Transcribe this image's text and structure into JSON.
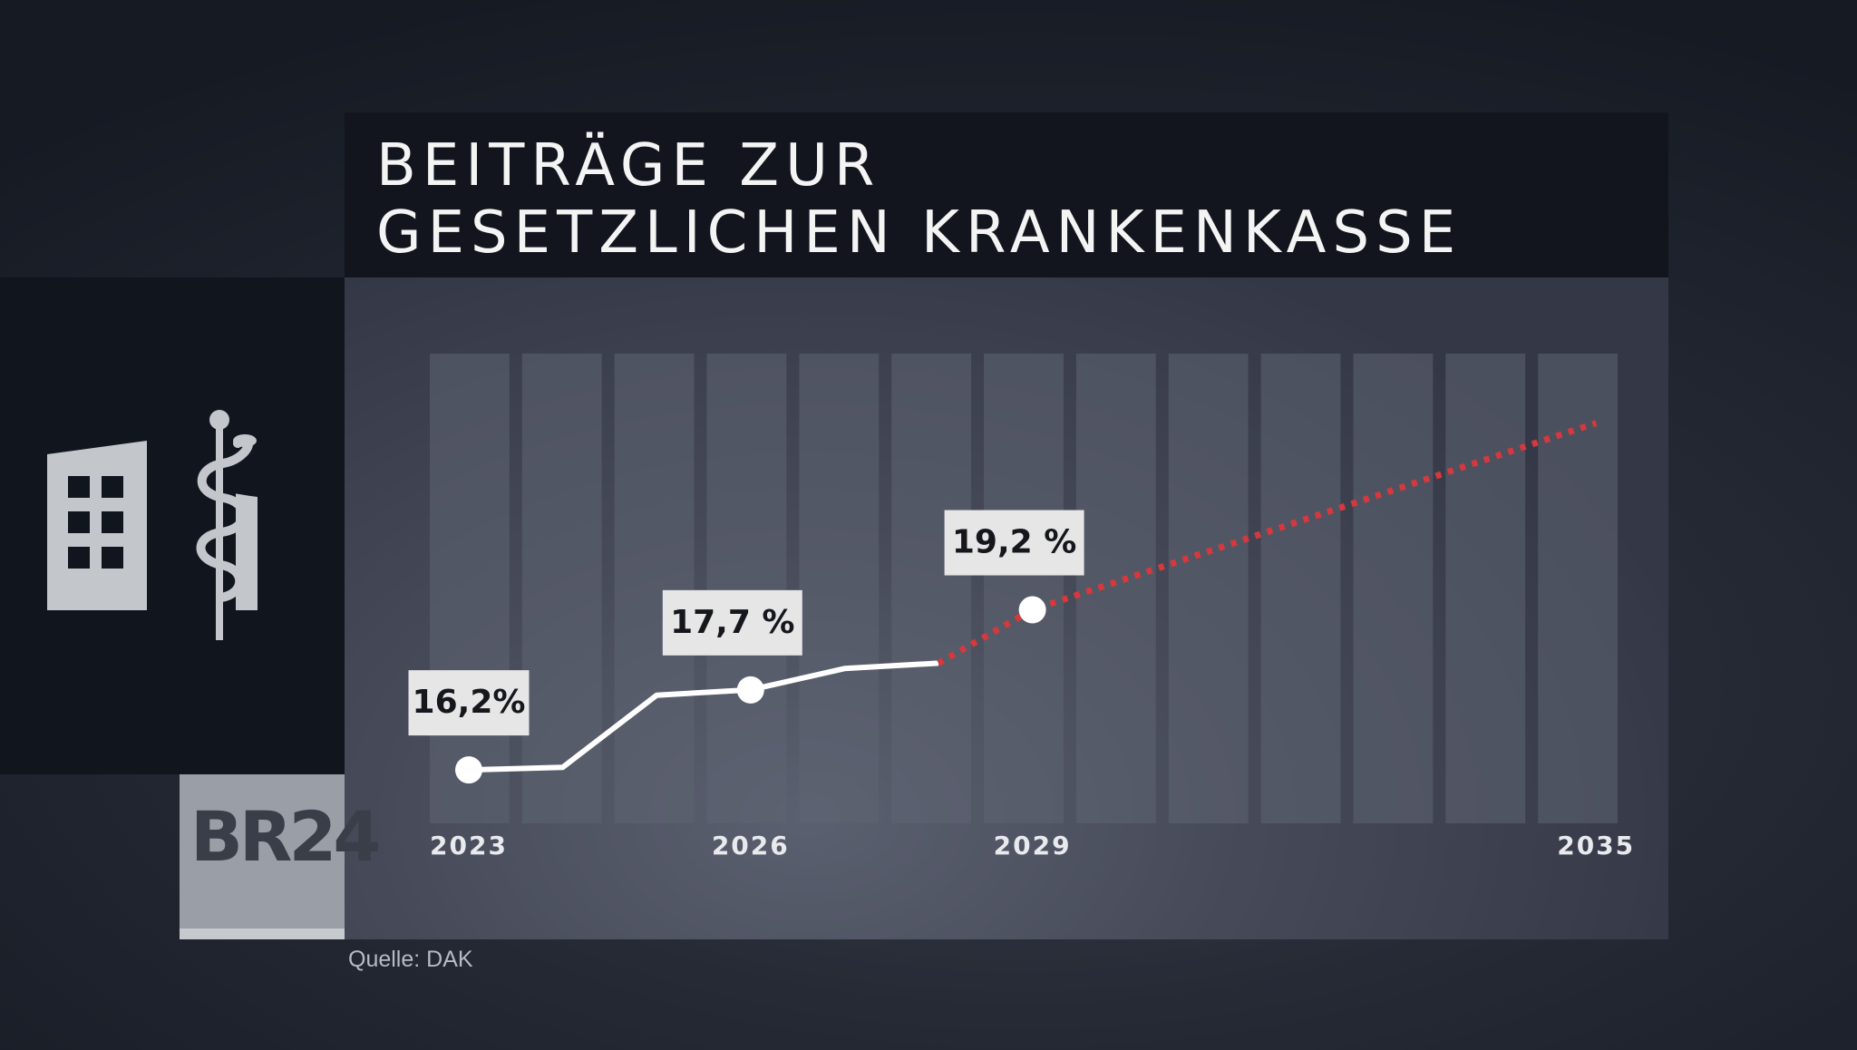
{
  "header": {
    "title": "BEITRÄGE ZUR\nGESETZLICHEN KRANKENKASSE"
  },
  "footer": {
    "source": "Quelle: DAK"
  },
  "logo": {
    "text": "BR24"
  },
  "icons": {
    "illustration": "hospital-building-with-asclepius-staff-icon"
  },
  "colors": {
    "actual_line": "#ffffff",
    "forecast_line": "#d8383c",
    "label_bg": "#e6e6e6",
    "column": "#5f6473"
  },
  "chart_data": {
    "type": "line",
    "title": "BEITRÄGE ZUR GESETZLICHEN KRANKENKASSE",
    "xlabel": "",
    "ylabel": "",
    "xlim": [
      2023,
      2035
    ],
    "x_ticks": [
      "2023",
      "2026",
      "2029",
      "2035"
    ],
    "grid": "vertical columns, one per year",
    "series": [
      {
        "style": "solid white, measured",
        "x": [
          2023,
          2024,
          2025,
          2026,
          2027,
          2028
        ],
        "y": [
          16.2,
          16.25,
          17.6,
          17.7,
          18.1,
          18.2
        ]
      },
      {
        "style": "dotted red, forecast",
        "x": [
          2028,
          2029,
          2035
        ],
        "y": [
          18.2,
          19.2,
          22.7
        ]
      }
    ],
    "markers": [
      {
        "x": 2023,
        "y": 16.2,
        "label": "16,2%"
      },
      {
        "x": 2026,
        "y": 17.7,
        "label": "17,7 %"
      },
      {
        "x": 2029,
        "y": 19.2,
        "label": "19,2 %"
      }
    ]
  }
}
